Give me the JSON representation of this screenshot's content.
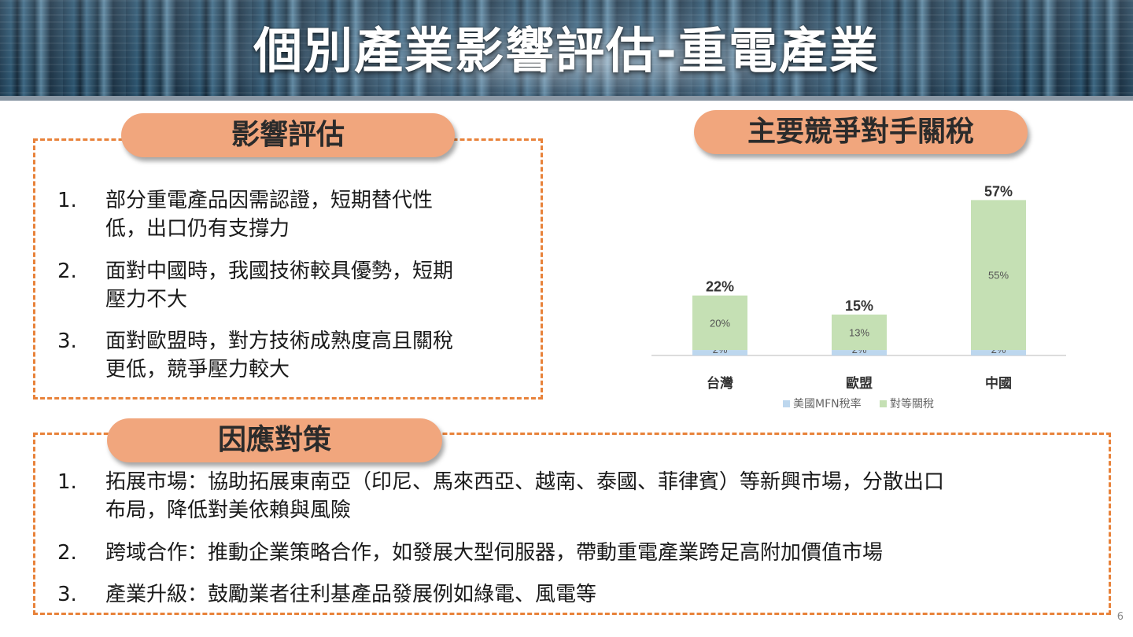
{
  "header": {
    "title": "個別產業影響評估-重電產業"
  },
  "impact": {
    "heading": "影響評估",
    "items": [
      {
        "num": "1.",
        "line1": "部分重電產品因需認證，短期替代性",
        "line2": "低，出口仍有支撐力"
      },
      {
        "num": "2.",
        "line1": "面對中國時，我國技術較具優勢，短期",
        "line2": "壓力不大"
      },
      {
        "num": "3.",
        "line1": "面對歐盟時，對方技術成熟度高且關稅",
        "line2": "更低，競爭壓力較大"
      }
    ]
  },
  "competitors": {
    "heading": "主要競爭對手關稅"
  },
  "response": {
    "heading": "因應對策",
    "items": [
      {
        "num": "1.",
        "line1": "拓展市場：協助拓展東南亞（印尼、馬來西亞、越南、泰國、菲律賓）等新興市場，分散出口",
        "line2": "布局，降低對美依賴與風險"
      },
      {
        "num": "2.",
        "line1": "跨域合作：推動企業策略合作，如發展大型伺服器，帶動重電產業跨足高附加價值市場",
        "line2": ""
      },
      {
        "num": "3.",
        "line1": "產業升級：鼓勵業者往利基產品發展例如綠電、風電等",
        "line2": ""
      }
    ]
  },
  "page_number": "6",
  "chart_data": {
    "type": "bar",
    "stacked": true,
    "title": "",
    "xlabel": "",
    "ylabel": "",
    "categories": [
      "台灣",
      "歐盟",
      "中國"
    ],
    "series": [
      {
        "name": "美國MFN稅率",
        "values": [
          2,
          2,
          2
        ],
        "labels": [
          "2%",
          "2%",
          "2%"
        ],
        "color": "#bdd7ee"
      },
      {
        "name": "對等關稅",
        "values": [
          20,
          13,
          55
        ],
        "labels": [
          "20%",
          "13%",
          "55%"
        ],
        "color": "#c5e0b4"
      }
    ],
    "totals": [
      22,
      15,
      57
    ],
    "total_labels": [
      "22%",
      "15%",
      "57%"
    ],
    "ylim": [
      0,
      60
    ],
    "grid": false,
    "legend": "bottom"
  }
}
